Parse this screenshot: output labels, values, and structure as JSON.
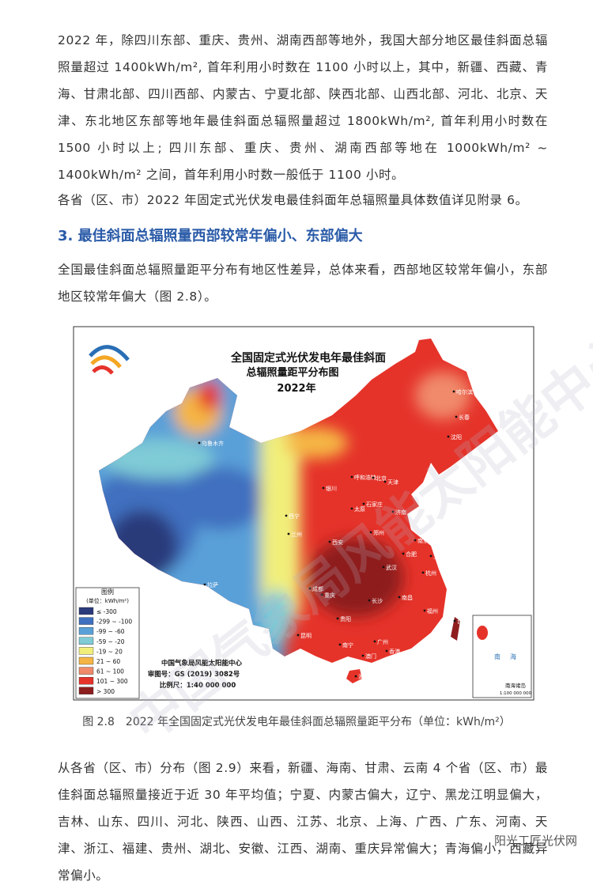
{
  "paragraphs": [
    "2022 年，除四川东部、重庆、贵州、湖南西部等地外，我国大部分地区最佳斜面总辐照量超过 1400kWh/m², 首年利用小时数在 1100 小时以上，其中，新疆、西藏、青海、甘肃北部、四川西部、内蒙古、宁夏北部、陕西北部、山西北部、河北、北京、天津、东北地区东部等地年最佳斜面总辐照量超过 1800kWh/m², 首年利用小时数在1500 小时以上; 四川东部、重庆、贵州、湖南西部等地在 1000kWh/m² ~ 1400kWh/m² 之间，首年利用小时数一般低于 1100 小时。",
    "各省（区、市）2022 年固定式光伏发电最佳斜面年总辐照量具体数值详见附录 6。"
  ],
  "heading": "3. 最佳斜面总辐照量西部较常年偏小、东部偏大",
  "paragraph3": "全国最佳斜面总辐照量距平分布有地区性差异，总体来看，西部地区较常年偏小，东部地区较常年偏大（图 2.8）。",
  "map": {
    "title": [
      "全国固定式光伏发电年最佳斜面",
      "总辐照量距平分布图",
      "2022年"
    ],
    "legend": {
      "title": "图例",
      "unit": "(单位：kWh/m²)",
      "items": [
        {
          "label": "≤ -300",
          "color": "#2b3a7a"
        },
        {
          "label": "-299 ~ -100",
          "color": "#3f6fbf"
        },
        {
          "label": "-99 ~ -60",
          "color": "#5aa0d8"
        },
        {
          "label": "-59 ~ -20",
          "color": "#7fcbd6"
        },
        {
          "label": "-19 ~ 20",
          "color": "#f1ef7a"
        },
        {
          "label": "21 ~ 60",
          "color": "#f5b545"
        },
        {
          "label": "61 ~ 100",
          "color": "#f08a6a"
        },
        {
          "label": "101 ~ 300",
          "color": "#e5332a"
        },
        {
          "label": "> 300",
          "color": "#8e1d1d"
        }
      ]
    },
    "credits": [
      "中国气象局风能太阳能中心",
      "审图号：GS (2019) 3082号",
      "比例尺：1:40 000 000"
    ],
    "inset": {
      "title": "南海诸岛",
      "scale": "1:100 000 000",
      "sea": [
        "南",
        "海"
      ]
    },
    "cities": [
      "乌鲁木齐",
      "拉萨",
      "西宁",
      "兰州",
      "银川",
      "呼和浩特",
      "北京",
      "天津",
      "石家庄",
      "太原",
      "济南",
      "郑州",
      "西安",
      "成都",
      "重庆",
      "武汉",
      "合肥",
      "南京",
      "上海",
      "杭州",
      "长沙",
      "南昌",
      "福州",
      "贵阳",
      "昆明",
      "南宁",
      "广州",
      "海口",
      "台北",
      "沈阳",
      "长春",
      "哈尔滨",
      "香港",
      "澳门"
    ]
  },
  "caption": "图 2.8　2022 年全国固定式光伏发电年最佳斜面总辐照量距平分布（单位：kWh/m²）",
  "paragraph4": "从各省（区、市）分布（图 2.9）来看，新疆、海南、甘肃、云南 4 个省（区、市）最佳斜面总辐照量接近于近 30 年平均值；宁夏、内蒙古偏大，辽宁、黑龙江明显偏大，吉林、山东、四川、河北、陕西、山西、江苏、北京、上海、广西、广东、河南、天津、浙江、福建、贵州、湖北、安徽、江西、湖南、重庆异常偏大；青海偏小，西藏异常偏小。",
  "watermark": "阳光工匠光伏网",
  "background_watermark": "中国气象局风能太阳能中心"
}
